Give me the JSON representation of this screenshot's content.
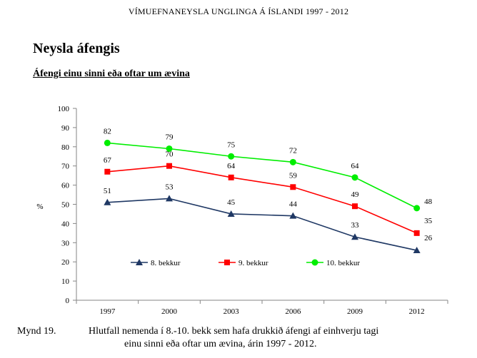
{
  "header": {
    "text": "VÍMUEFNANEYSLA UNGLINGA Á ÍSLANDI 1997 - 2012"
  },
  "title": "Neysla áfengis",
  "subtitle": "Áfengi einu sinni eða oftar um ævina",
  "chart_data": {
    "type": "line",
    "x": [
      "1997",
      "2000",
      "2003",
      "2006",
      "2009",
      "2012"
    ],
    "ylabel": "%",
    "ylim": [
      0,
      100
    ],
    "ytick_step": 10,
    "grid": false,
    "legend_position": "inside-bottom",
    "series": [
      {
        "name": "8. bekkur",
        "values": [
          51,
          53,
          45,
          44,
          33,
          26
        ],
        "color": "#1f3864",
        "marker": "triangle"
      },
      {
        "name": "9. bekkur",
        "values": [
          67,
          70,
          64,
          59,
          49,
          35
        ],
        "color": "#ff0000",
        "marker": "square"
      },
      {
        "name": "10. bekkur",
        "values": [
          82,
          79,
          75,
          72,
          64,
          48
        ],
        "color": "#00ee00",
        "marker": "circle"
      }
    ]
  },
  "caption": {
    "number": "Mynd 19.",
    "line1": "Hlutfall nemenda í 8.-10. bekk sem hafa drukkið áfengi af einhverju tagi",
    "line2": "einu sinni eða oftar um ævina, árin 1997 - 2012."
  }
}
